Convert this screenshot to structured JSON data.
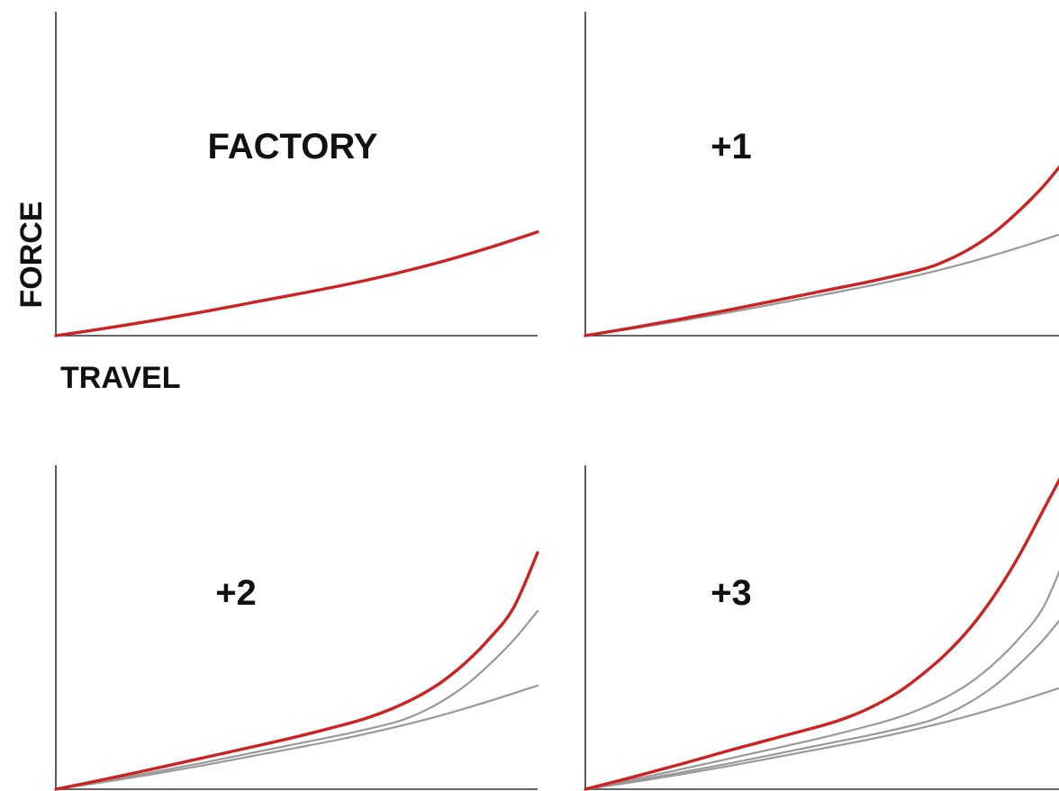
{
  "chart_data": [
    {
      "type": "line",
      "title": "FACTORY",
      "xlabel": "TRAVEL",
      "ylabel": "FORCE",
      "xlim": [
        0,
        1
      ],
      "ylim": [
        0,
        1
      ],
      "grid": false,
      "colors": {
        "highlight": "#cc2222",
        "previous": "#999999"
      },
      "series": [
        {
          "highlight": true,
          "x": [
            0,
            0.1,
            0.2,
            0.3,
            0.4,
            0.5,
            0.6,
            0.7,
            0.8,
            0.9,
            1.0
          ],
          "y": [
            0,
            0.022,
            0.046,
            0.072,
            0.1,
            0.128,
            0.157,
            0.19,
            0.228,
            0.272,
            0.32
          ]
        }
      ]
    },
    {
      "type": "line",
      "title": "+1",
      "xlim": [
        0,
        1
      ],
      "ylim": [
        0,
        1
      ],
      "grid": false,
      "colors": {
        "highlight": "#cc2222",
        "previous": "#999999"
      },
      "series": [
        {
          "highlight": false,
          "x": [
            0,
            0.1,
            0.2,
            0.3,
            0.4,
            0.5,
            0.6,
            0.7,
            0.8,
            0.9,
            1.0
          ],
          "y": [
            0,
            0.022,
            0.046,
            0.072,
            0.1,
            0.128,
            0.157,
            0.19,
            0.228,
            0.272,
            0.32
          ]
        },
        {
          "highlight": true,
          "x": [
            0,
            0.1,
            0.2,
            0.3,
            0.4,
            0.5,
            0.6,
            0.7,
            0.75,
            0.8,
            0.85,
            0.9,
            0.95,
            1.0
          ],
          "y": [
            0,
            0.025,
            0.052,
            0.08,
            0.11,
            0.14,
            0.17,
            0.205,
            0.232,
            0.27,
            0.32,
            0.385,
            0.46,
            0.55
          ]
        }
      ]
    },
    {
      "type": "line",
      "title": "+2",
      "xlim": [
        0,
        1
      ],
      "ylim": [
        0,
        1
      ],
      "grid": false,
      "colors": {
        "highlight": "#cc2222",
        "previous": "#999999"
      },
      "series": [
        {
          "highlight": false,
          "x": [
            0,
            0.1,
            0.2,
            0.3,
            0.4,
            0.5,
            0.6,
            0.7,
            0.8,
            0.9,
            1.0
          ],
          "y": [
            0,
            0.022,
            0.046,
            0.072,
            0.1,
            0.128,
            0.157,
            0.19,
            0.228,
            0.272,
            0.32
          ]
        },
        {
          "highlight": false,
          "x": [
            0,
            0.1,
            0.2,
            0.3,
            0.4,
            0.5,
            0.6,
            0.7,
            0.75,
            0.8,
            0.85,
            0.9,
            0.95,
            1.0
          ],
          "y": [
            0,
            0.025,
            0.052,
            0.08,
            0.11,
            0.14,
            0.17,
            0.205,
            0.232,
            0.27,
            0.32,
            0.385,
            0.46,
            0.55
          ]
        },
        {
          "highlight": true,
          "x": [
            0,
            0.1,
            0.2,
            0.3,
            0.4,
            0.5,
            0.6,
            0.65,
            0.7,
            0.75,
            0.8,
            0.85,
            0.9,
            0.95,
            1.0
          ],
          "y": [
            0,
            0.03,
            0.062,
            0.095,
            0.128,
            0.162,
            0.2,
            0.222,
            0.25,
            0.285,
            0.33,
            0.39,
            0.465,
            0.56,
            0.73
          ]
        }
      ]
    },
    {
      "type": "line",
      "title": "+3",
      "xlim": [
        0,
        1
      ],
      "ylim": [
        0,
        1
      ],
      "grid": false,
      "colors": {
        "highlight": "#cc2222",
        "previous": "#999999"
      },
      "series": [
        {
          "highlight": false,
          "x": [
            0,
            0.1,
            0.2,
            0.3,
            0.4,
            0.5,
            0.6,
            0.7,
            0.8,
            0.9,
            1.0
          ],
          "y": [
            0,
            0.022,
            0.046,
            0.072,
            0.1,
            0.128,
            0.157,
            0.19,
            0.228,
            0.272,
            0.32
          ]
        },
        {
          "highlight": false,
          "x": [
            0,
            0.1,
            0.2,
            0.3,
            0.4,
            0.5,
            0.6,
            0.7,
            0.75,
            0.8,
            0.85,
            0.9,
            0.95,
            1.0
          ],
          "y": [
            0,
            0.025,
            0.052,
            0.08,
            0.11,
            0.14,
            0.17,
            0.205,
            0.232,
            0.27,
            0.32,
            0.385,
            0.46,
            0.55
          ]
        },
        {
          "highlight": false,
          "x": [
            0,
            0.1,
            0.2,
            0.3,
            0.4,
            0.5,
            0.6,
            0.65,
            0.7,
            0.75,
            0.8,
            0.85,
            0.9,
            0.95,
            1.0
          ],
          "y": [
            0,
            0.03,
            0.062,
            0.095,
            0.128,
            0.162,
            0.2,
            0.222,
            0.25,
            0.285,
            0.33,
            0.39,
            0.465,
            0.56,
            0.73
          ]
        },
        {
          "highlight": true,
          "x": [
            0,
            0.1,
            0.2,
            0.3,
            0.4,
            0.5,
            0.55,
            0.6,
            0.65,
            0.7,
            0.75,
            0.8,
            0.85,
            0.9,
            0.95,
            1.0
          ],
          "y": [
            0,
            0.038,
            0.078,
            0.12,
            0.16,
            0.2,
            0.225,
            0.258,
            0.3,
            0.355,
            0.42,
            0.5,
            0.6,
            0.72,
            0.86,
            1.0
          ]
        }
      ]
    }
  ]
}
